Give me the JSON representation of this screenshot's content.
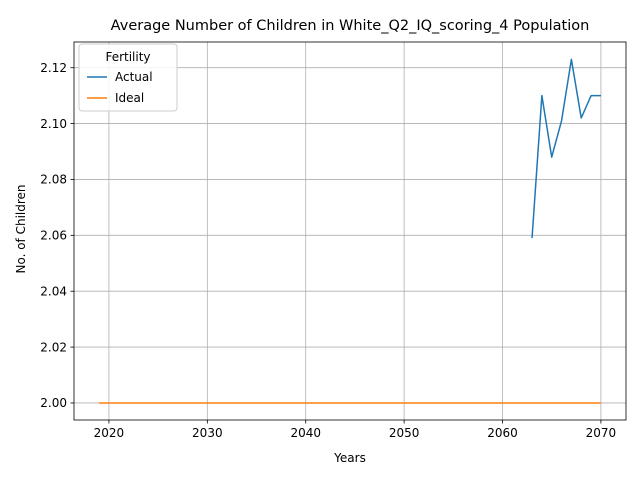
{
  "chart_data": {
    "type": "line",
    "title": "Average Number of Children in White_Q2_IQ_scoring_4 Population",
    "xlabel": "Years",
    "ylabel": "No. of Children",
    "xlim": [
      2016.45,
      2072.55
    ],
    "ylim": [
      1.9939,
      2.1292
    ],
    "x_ticks": [
      2020,
      2030,
      2040,
      2050,
      2060,
      2070
    ],
    "y_ticks": [
      2.0,
      2.02,
      2.04,
      2.06,
      2.08,
      2.1,
      2.12
    ],
    "x_tick_labels": [
      "2020",
      "2030",
      "2040",
      "2050",
      "2060",
      "2070"
    ],
    "y_tick_labels": [
      "2.00",
      "2.02",
      "2.04",
      "2.06",
      "2.08",
      "2.10",
      "2.12"
    ],
    "grid": true,
    "legend": {
      "title": "Fertility",
      "position": "top-left"
    },
    "series": [
      {
        "name": "Actual",
        "color": "#1f77b4",
        "x": [
          2063,
          2064,
          2065,
          2066,
          2067,
          2068,
          2069,
          2070
        ],
        "values": [
          2.059,
          2.11,
          2.088,
          2.101,
          2.123,
          2.102,
          2.11,
          2.11
        ]
      },
      {
        "name": "Ideal",
        "color": "#ff7f0e",
        "x": [
          2019,
          2070
        ],
        "values": [
          2.0,
          2.0
        ]
      }
    ]
  }
}
